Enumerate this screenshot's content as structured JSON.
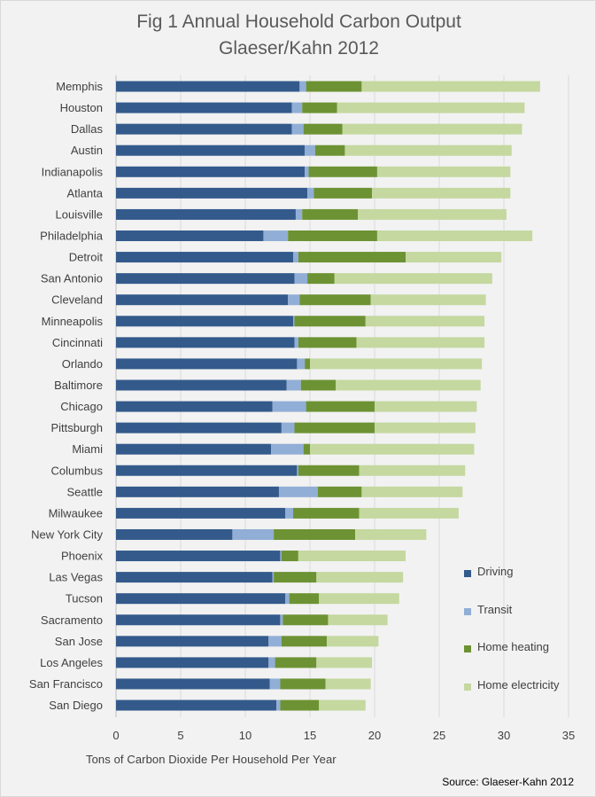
{
  "title_line1": "Fig 1 Annual Household Carbon Output",
  "title_line2": "Glaeser/Kahn 2012",
  "xlabel": "Tons of Carbon Dioxide Per Household Per Year",
  "source": "Source: Glaeser-Kahn 2012",
  "colors": {
    "driving": "#335a8b",
    "transit": "#91aed6",
    "home_heating": "#6d9233",
    "home_electricity": "#c4d8a0",
    "gridline": "#d9d9d9",
    "background": "#f2f2f2"
  },
  "legend": [
    {
      "label": "Driving",
      "color": "#335a8b"
    },
    {
      "label": "Transit",
      "color": "#91aed6"
    },
    {
      "label": "Home heating",
      "color": "#6d9233"
    },
    {
      "label": "Home electricity",
      "color": "#c4d8a0"
    }
  ],
  "chart_data": {
    "type": "bar",
    "orientation": "horizontal",
    "stacked": true,
    "title": "Fig 1 Annual Household Carbon Output Glaeser/Kahn 2012",
    "xlabel": "Tons of Carbon Dioxide Per Household Per Year",
    "ylabel": "",
    "xlim": [
      0,
      35
    ],
    "xticks": [
      "0",
      "5",
      "10",
      "15",
      "20",
      "25",
      "30",
      "35"
    ],
    "grid": "vertical",
    "legend_position": "right",
    "categories": [
      "Memphis",
      "Houston",
      "Dallas",
      "Austin",
      "Indianapolis",
      "Atlanta",
      "Louisville",
      "Philadelphia",
      "Detroit",
      "San  Antonio",
      "Cleveland",
      "Minneapolis",
      "Cincinnati",
      "Orlando",
      "Baltimore",
      "Chicago",
      "Pittsburgh",
      "Miami",
      "Columbus",
      "Seattle",
      "Milwaukee",
      "New York City",
      "Phoenix",
      "Las Vegas",
      "Tucson",
      "Sacramento",
      "San Jose",
      "Los Angeles",
      "San Francisco",
      "San Diego"
    ],
    "series": [
      {
        "name": "Driving",
        "values": [
          14.2,
          13.6,
          13.6,
          14.6,
          14.6,
          14.8,
          13.9,
          11.4,
          13.7,
          13.8,
          13.3,
          13.7,
          13.8,
          14.0,
          13.2,
          12.1,
          12.8,
          12.0,
          14.0,
          12.6,
          13.1,
          9.0,
          12.7,
          12.1,
          13.1,
          12.7,
          11.8,
          11.8,
          11.9,
          12.4
        ]
      },
      {
        "name": "Transit",
        "values": [
          0.5,
          0.8,
          0.9,
          0.8,
          0.3,
          0.5,
          0.5,
          1.9,
          0.4,
          1.0,
          0.9,
          0.1,
          0.3,
          0.6,
          1.1,
          2.6,
          1.0,
          2.5,
          0.1,
          3.0,
          0.6,
          3.2,
          0.1,
          0.1,
          0.3,
          0.2,
          1.0,
          0.5,
          0.8,
          0.3
        ]
      },
      {
        "name": "Home heating",
        "values": [
          4.3,
          2.7,
          3.0,
          2.3,
          5.3,
          4.5,
          4.3,
          6.9,
          8.3,
          2.1,
          5.5,
          5.5,
          4.5,
          0.4,
          2.7,
          5.3,
          6.2,
          0.5,
          4.7,
          3.4,
          5.1,
          6.3,
          1.3,
          3.3,
          2.3,
          3.5,
          3.5,
          3.2,
          3.5,
          3.0
        ]
      },
      {
        "name": "Home electricity",
        "values": [
          13.8,
          14.5,
          13.9,
          12.9,
          10.3,
          10.7,
          11.5,
          12.0,
          7.4,
          12.2,
          8.9,
          9.2,
          9.9,
          13.3,
          11.2,
          7.9,
          7.8,
          12.7,
          8.2,
          7.8,
          7.7,
          5.5,
          8.3,
          6.7,
          6.2,
          4.6,
          4.0,
          4.3,
          3.5,
          3.6
        ]
      }
    ]
  }
}
